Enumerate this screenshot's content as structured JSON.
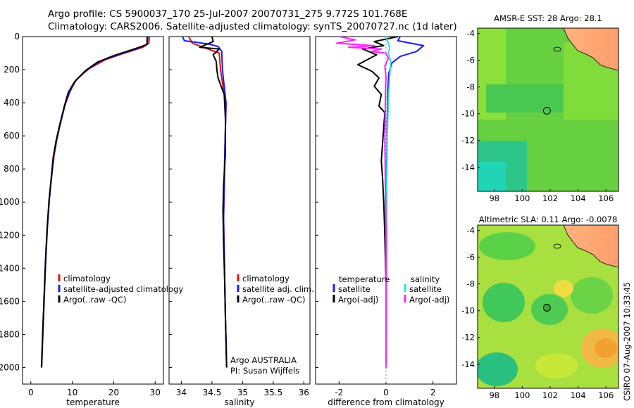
{
  "header": {
    "line1": "Argo profile: CS 5900037_170 25-Jul-2007 20070731_275 9.772S 101.768E",
    "line2": "Climatology: CARS2006. Satellite-adjusted climatology: synTS_20070727.nc (1d later)"
  },
  "footer": {
    "credit": "CSIRO 07-Aug-2007 10:33:45"
  },
  "colors": {
    "climatology": "#e01010",
    "satellite": "#1a1aff",
    "argo": "#000000",
    "satellite_diff_sal": "#33dddd",
    "argo_diff_sal": "#ff22ff"
  },
  "chart_data": [
    {
      "type": "line",
      "panel": "temperature",
      "xlabel": "temperature",
      "ylabel": "depth",
      "xlim": [
        -2,
        32
      ],
      "ylim": [
        2100,
        0
      ],
      "xticks": [
        0,
        10,
        20,
        30
      ],
      "yticks": [
        0,
        200,
        400,
        600,
        800,
        1000,
        1200,
        1400,
        1600,
        1800,
        2000
      ],
      "legend": [
        "climatology",
        "satellite-adjusted climatology",
        "Argo(..raw -QC)"
      ],
      "series": [
        {
          "name": "climatology",
          "color": "#e01010",
          "points": [
            [
              28.6,
              0
            ],
            [
              28.5,
              40
            ],
            [
              27,
              65
            ],
            [
              22,
              105
            ],
            [
              18,
              140
            ],
            [
              14,
              195
            ],
            [
              11,
              260
            ],
            [
              9.5,
              330
            ],
            [
              8.3,
              410
            ],
            [
              7.2,
              520
            ],
            [
              6.3,
              620
            ],
            [
              5.6,
              720
            ],
            [
              5,
              850
            ],
            [
              4.5,
              980
            ],
            [
              4,
              1150
            ],
            [
              3.6,
              1350
            ],
            [
              3.2,
              1600
            ],
            [
              2.9,
              1800
            ],
            [
              2.6,
              2000
            ]
          ]
        },
        {
          "name": "satellite-adjusted climatology",
          "color": "#1a1aff",
          "points": [
            [
              28.2,
              0
            ],
            [
              28.1,
              45
            ],
            [
              26,
              70
            ],
            [
              21,
              110
            ],
            [
              17,
              145
            ],
            [
              13.5,
              200
            ],
            [
              10.8,
              265
            ],
            [
              9.3,
              335
            ],
            [
              8.2,
              415
            ],
            [
              7.1,
              525
            ],
            [
              6.2,
              625
            ],
            [
              5.5,
              725
            ],
            [
              4.95,
              855
            ],
            [
              4.45,
              985
            ],
            [
              4,
              1150
            ],
            [
              3.6,
              1350
            ],
            [
              3.2,
              1600
            ],
            [
              2.9,
              1800
            ],
            [
              2.6,
              2000
            ]
          ]
        },
        {
          "name": "Argo(..raw -QC)",
          "color": "#000000",
          "points": [
            [
              28.1,
              0
            ],
            [
              28,
              48
            ],
            [
              25,
              75
            ],
            [
              20,
              115
            ],
            [
              16,
              155
            ],
            [
              13,
              210
            ],
            [
              10.5,
              275
            ],
            [
              9,
              340
            ],
            [
              8.1,
              420
            ],
            [
              7,
              530
            ],
            [
              6.1,
              630
            ],
            [
              5.4,
              730
            ],
            [
              4.9,
              860
            ],
            [
              4.4,
              990
            ],
            [
              3.95,
              1150
            ],
            [
              3.55,
              1350
            ],
            [
              3.15,
              1600
            ],
            [
              2.85,
              1800
            ],
            [
              2.55,
              2000
            ]
          ]
        }
      ]
    },
    {
      "type": "line",
      "panel": "salinity",
      "xlabel": "salinity",
      "ylabel": "depth",
      "xlim": [
        33.8,
        36.1
      ],
      "ylim": [
        2100,
        0
      ],
      "xticks": [
        34,
        34.5,
        35,
        35.5,
        36
      ],
      "legend": [
        "climatology",
        "satellite adj. clim.",
        "Argo(..raw -QC)"
      ],
      "annotations": [
        "Argo AUSTRALIA",
        "PI: Susan Wijffels"
      ],
      "series": [
        {
          "name": "climatology",
          "color": "#e01010",
          "points": [
            [
              34.12,
              0
            ],
            [
              34.18,
              40
            ],
            [
              34.4,
              70
            ],
            [
              34.62,
              100
            ],
            [
              34.64,
              200
            ],
            [
              34.68,
              300
            ],
            [
              34.73,
              400
            ],
            [
              34.72,
              550
            ],
            [
              34.71,
              700
            ],
            [
              34.7,
              900
            ],
            [
              34.69,
              1100
            ],
            [
              34.7,
              1300
            ],
            [
              34.71,
              1500
            ],
            [
              34.72,
              1700
            ],
            [
              34.73,
              1850
            ],
            [
              34.74,
              2000
            ]
          ]
        },
        {
          "name": "satellite adj. clim.",
          "color": "#1a1aff",
          "points": [
            [
              34.02,
              0
            ],
            [
              34.05,
              25
            ],
            [
              34.45,
              45
            ],
            [
              34.6,
              60
            ],
            [
              34.66,
              90
            ],
            [
              34.67,
              200
            ],
            [
              34.7,
              300
            ],
            [
              34.73,
              400
            ],
            [
              34.72,
              550
            ],
            [
              34.71,
              700
            ],
            [
              34.7,
              900
            ],
            [
              34.69,
              1100
            ],
            [
              34.7,
              1300
            ],
            [
              34.71,
              1500
            ],
            [
              34.72,
              1700
            ],
            [
              34.73,
              1850
            ],
            [
              34.74,
              2000
            ]
          ]
        },
        {
          "name": "Argo(..raw -QC)",
          "color": "#000000",
          "points": [
            [
              34.5,
              0
            ],
            [
              34.52,
              30
            ],
            [
              34.3,
              65
            ],
            [
              34.62,
              75
            ],
            [
              34.52,
              110
            ],
            [
              34.57,
              150
            ],
            [
              34.58,
              200
            ],
            [
              34.6,
              250
            ],
            [
              34.65,
              300
            ],
            [
              34.7,
              350
            ],
            [
              34.71,
              420
            ],
            [
              34.72,
              500
            ],
            [
              34.72,
              700
            ],
            [
              34.69,
              900
            ],
            [
              34.68,
              1050
            ],
            [
              34.69,
              1250
            ],
            [
              34.71,
              1500
            ],
            [
              34.72,
              1700
            ],
            [
              34.73,
              1850
            ],
            [
              34.74,
              2000
            ]
          ]
        }
      ]
    },
    {
      "type": "line",
      "panel": "difference",
      "xlabel": "difference from climatology",
      "ylabel": "depth",
      "xlim": [
        -3,
        3
      ],
      "ylim": [
        2100,
        0
      ],
      "xticks": [
        -2,
        0,
        2
      ],
      "legend": [
        "temperature",
        "satellite",
        "Argo(-adj)",
        "salinity",
        "satellite",
        "Argo(-adj)"
      ],
      "series": [
        {
          "name": "temperature satellite",
          "color": "#1a1aff",
          "points": [
            [
              0.6,
              0
            ],
            [
              0.5,
              25
            ],
            [
              1.6,
              55
            ],
            [
              1.3,
              90
            ],
            [
              0.6,
              120
            ],
            [
              0.25,
              160
            ],
            [
              0.12,
              220
            ],
            [
              0.08,
              300
            ],
            [
              0.05,
              500
            ],
            [
              0.03,
              800
            ],
            [
              0.02,
              1200
            ],
            [
              0.01,
              1600
            ],
            [
              0,
              2000
            ]
          ]
        },
        {
          "name": "temperature Argo(-adj)",
          "color": "#000000",
          "points": [
            [
              0.5,
              0
            ],
            [
              -0.5,
              30
            ],
            [
              -0.1,
              55
            ],
            [
              -1,
              75
            ],
            [
              -0.4,
              110
            ],
            [
              -0.8,
              140
            ],
            [
              -1.2,
              170
            ],
            [
              -0.6,
              210
            ],
            [
              -0.3,
              250
            ],
            [
              -0.5,
              300
            ],
            [
              -0.2,
              350
            ],
            [
              -0.3,
              420
            ],
            [
              -0.05,
              460
            ],
            [
              -0.1,
              550
            ],
            [
              -0.15,
              650
            ],
            [
              -0.2,
              750
            ],
            [
              -0.15,
              850
            ],
            [
              -0.1,
              1000
            ],
            [
              -0.05,
              1200
            ],
            [
              0,
              1500
            ],
            [
              0,
              2000
            ]
          ]
        },
        {
          "name": "salinity satellite",
          "color": "#33dddd",
          "points": [
            [
              0,
              0
            ],
            [
              0.1,
              40
            ],
            [
              0.15,
              70
            ],
            [
              0.1,
              100
            ],
            [
              0.2,
              150
            ],
            [
              0.15,
              250
            ],
            [
              0.1,
              400
            ],
            [
              0.05,
              600
            ],
            [
              0.03,
              900
            ],
            [
              0.02,
              1200
            ],
            [
              0.01,
              1600
            ],
            [
              0,
              2000
            ]
          ]
        },
        {
          "name": "salinity Argo(-adj)",
          "color": "#ff22ff",
          "points": [
            [
              -2,
              0
            ],
            [
              -1.3,
              20
            ],
            [
              -2.1,
              40
            ],
            [
              -0.5,
              55
            ],
            [
              -1.6,
              65
            ],
            [
              -0.2,
              75
            ],
            [
              -0.6,
              90
            ],
            [
              0,
              100
            ],
            [
              0.1,
              130
            ],
            [
              -0.05,
              180
            ],
            [
              0,
              250
            ],
            [
              -0.02,
              300
            ],
            [
              -0.03,
              400
            ],
            [
              -0.05,
              600
            ],
            [
              -0.03,
              900
            ],
            [
              0,
              1200
            ],
            [
              0,
              2000
            ]
          ]
        }
      ]
    },
    {
      "type": "heatmap",
      "panel": "sst-map",
      "title": "AMSR-E SST: 28 Argo: 28.1",
      "xlim": [
        96.8,
        106.9
      ],
      "ylim": [
        -15.8,
        -3.6
      ],
      "xticks": [
        98,
        100,
        102,
        104,
        106
      ],
      "yticks": [
        -4,
        -6,
        -8,
        -10,
        -12,
        -14
      ],
      "marker": {
        "lon": 101.768,
        "lat": -9.772
      }
    },
    {
      "type": "heatmap",
      "panel": "sla-map",
      "title": "Altimetric SLA: 0.11 Argo: -0.0078",
      "xlim": [
        96.8,
        106.9
      ],
      "ylim": [
        -15.8,
        -3.6
      ],
      "xticks": [
        98,
        100,
        102,
        104,
        106
      ],
      "yticks": [
        -4,
        -6,
        -8,
        -10,
        -12,
        -14
      ],
      "marker": {
        "lon": 101.768,
        "lat": -9.772
      }
    }
  ]
}
